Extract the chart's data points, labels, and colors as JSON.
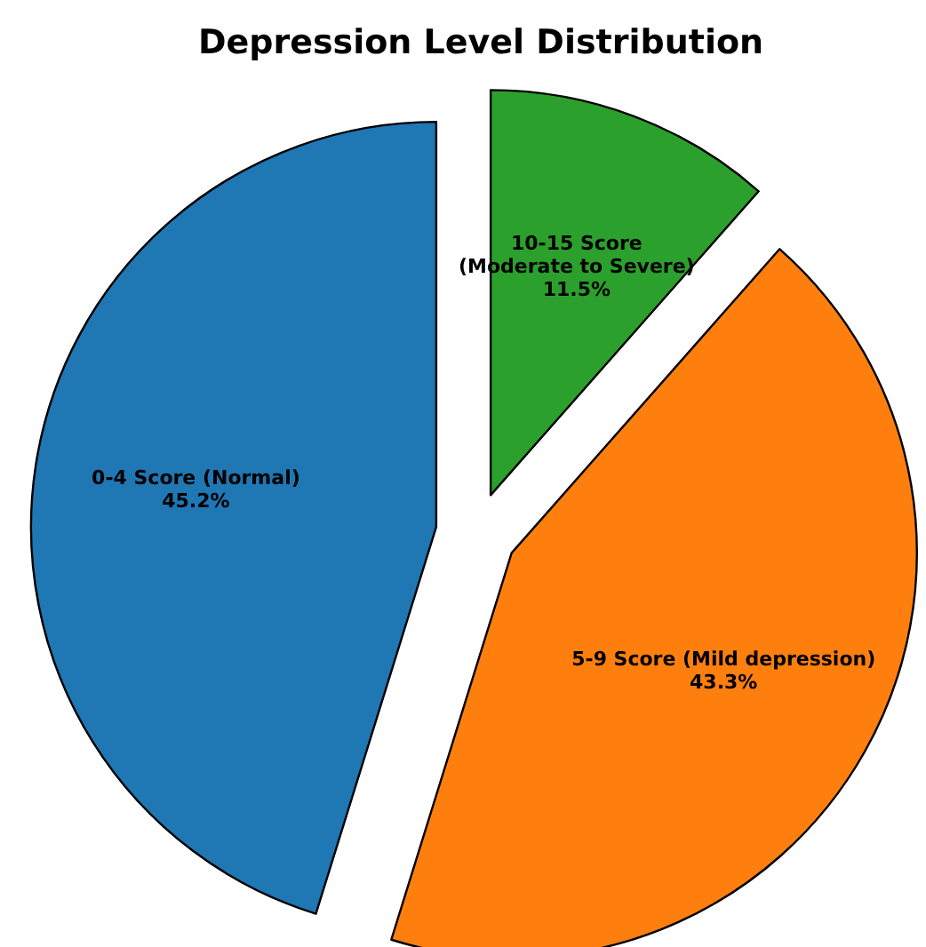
{
  "chart_data": {
    "type": "pie",
    "title": "Depression Level Distribution",
    "categories": [
      "0-4 Score (Normal)",
      "5-9 Score (Mild depression)",
      "10-15 Score\n(Moderate to Severe)"
    ],
    "values": [
      45.2,
      43.3,
      11.5
    ],
    "colors": [
      "#1f77b4",
      "#ff7f0e",
      "#2ca02c"
    ],
    "value_labels": [
      "45.2%",
      "43.3%",
      "11.5%"
    ]
  }
}
